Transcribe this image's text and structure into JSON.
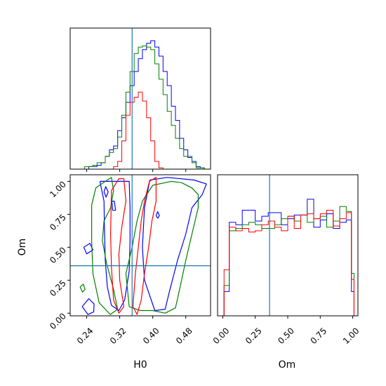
{
  "chart_data": {
    "type": "corner",
    "parameters": [
      "H0",
      "Om"
    ],
    "truth": {
      "H0": 0.35,
      "Om": 0.36
    },
    "colors": {
      "truth": "#1f77b4",
      "series": [
        "#0000ff",
        "#008000",
        "#ff0000"
      ]
    },
    "panels": [
      {
        "id": "hist-H0",
        "type": "histogram",
        "xlabel": "",
        "xlim": [
          0.2,
          0.54
        ],
        "xticks": [
          0.24,
          0.32,
          0.4,
          0.48
        ],
        "show_xticklabels": false,
        "y_scale": [
          0,
          1
        ],
        "bins": [
          0.205,
          0.215,
          0.225,
          0.235,
          0.245,
          0.255,
          0.265,
          0.275,
          0.285,
          0.295,
          0.305,
          0.315,
          0.325,
          0.335,
          0.345,
          0.355,
          0.365,
          0.375,
          0.385,
          0.395,
          0.405,
          0.415,
          0.425,
          0.435,
          0.445,
          0.455,
          0.465,
          0.475,
          0.485,
          0.495,
          0.505,
          0.515,
          0.525
        ],
        "series": [
          {
            "color": "#0000ff",
            "values": [
              0.0,
              0.0,
              0.0,
              0.0,
              0.02,
              0.02,
              0.03,
              0.05,
              0.1,
              0.15,
              0.18,
              0.3,
              0.4,
              0.52,
              0.65,
              0.76,
              0.86,
              0.93,
              0.98,
              1.0,
              0.95,
              0.88,
              0.76,
              0.65,
              0.49,
              0.38,
              0.24,
              0.15,
              0.09,
              0.06,
              0.02,
              0.01,
              0.0
            ]
          },
          {
            "color": "#008000",
            "values": [
              0.0,
              0.0,
              0.0,
              0.02,
              0.02,
              0.03,
              0.05,
              0.05,
              0.1,
              0.13,
              0.16,
              0.25,
              0.42,
              0.6,
              0.76,
              0.9,
              0.95,
              0.96,
              0.95,
              0.93,
              0.82,
              0.7,
              0.58,
              0.45,
              0.34,
              0.24,
              0.16,
              0.1,
              0.1,
              0.05,
              0.01,
              0.01,
              0.0
            ]
          },
          {
            "color": "#ff0000",
            "values": [
              0.0,
              0.0,
              0.0,
              0.0,
              0.0,
              0.0,
              0.0,
              0.0,
              0.0,
              0.0,
              0.02,
              0.06,
              0.22,
              0.42,
              0.52,
              0.56,
              0.6,
              0.53,
              0.4,
              0.22,
              0.06,
              0.01,
              0.0,
              0.0,
              0.0,
              0.0,
              0.0,
              0.0,
              0.0,
              0.0,
              0.0,
              0.0,
              0.0
            ]
          }
        ]
      },
      {
        "id": "contour-H0-Om",
        "type": "contour",
        "xlabel": "H0",
        "ylabel": "Om",
        "xlim": [
          0.2,
          0.54
        ],
        "ylim": [
          -0.02,
          1.05
        ],
        "xticks": [
          "0.24",
          "0.32",
          "0.40",
          "0.48"
        ],
        "yticks": [
          "0.00",
          "0.25",
          "0.50",
          "0.75",
          "1.00"
        ],
        "series": [
          {
            "color": "#0000ff",
            "paths": [
              [
                [
                  0.272,
                  1.0
                ],
                [
                  0.282,
                  0.85
                ],
                [
                  0.283,
                  0.65
                ],
                [
                  0.285,
                  0.4
                ],
                [
                  0.29,
                  0.2
                ],
                [
                  0.3,
                  0.06
                ],
                [
                  0.318,
                  0.02
                ],
                [
                  0.332,
                  0.1
                ],
                [
                  0.343,
                  0.32
                ],
                [
                  0.345,
                  0.55
                ],
                [
                  0.345,
                  0.8
                ],
                [
                  0.343,
                  1.0
                ],
                [
                  0.272,
                  1.0
                ]
              ],
              [
                [
                  0.393,
                  1.01
                ],
                [
                  0.435,
                  1.03
                ],
                [
                  0.5,
                  1.01
                ],
                [
                  0.53,
                  0.98
                ],
                [
                  0.52,
                  0.9
                ],
                [
                  0.495,
                  0.8
                ],
                [
                  0.48,
                  0.6
                ],
                [
                  0.46,
                  0.4
                ],
                [
                  0.44,
                  0.16
                ],
                [
                  0.43,
                  0.03
                ],
                [
                  0.405,
                  0.02
                ],
                [
                  0.38,
                  0.25
                ],
                [
                  0.375,
                  0.5
                ],
                [
                  0.38,
                  0.8
                ],
                [
                  0.393,
                  1.01
                ]
              ],
              [
                [
                  0.229,
                  0.05
                ],
                [
                  0.245,
                  0.11
                ],
                [
                  0.258,
                  0.07
                ],
                [
                  0.257,
                  0.01
                ],
                [
                  0.243,
                  -0.01
                ],
                [
                  0.229,
                  0.05
                ]
              ],
              [
                [
                  0.233,
                  0.5
                ],
                [
                  0.248,
                  0.53
                ],
                [
                  0.255,
                  0.48
                ],
                [
                  0.24,
                  0.45
                ],
                [
                  0.233,
                  0.5
                ]
              ],
              [
                [
                  0.301,
                  0.85
                ],
                [
                  0.307,
                  0.85
                ],
                [
                  0.31,
                  0.78
                ],
                [
                  0.303,
                  0.78
                ],
                [
                  0.301,
                  0.85
                ]
              ],
              [
                [
                  0.282,
                  0.92
                ],
                [
                  0.286,
                  0.96
                ],
                [
                  0.292,
                  0.92
                ],
                [
                  0.287,
                  0.88
                ],
                [
                  0.282,
                  0.92
                ]
              ],
              [
                [
                  0.408,
                  0.74
                ],
                [
                  0.412,
                  0.77
                ],
                [
                  0.416,
                  0.74
                ],
                [
                  0.412,
                  0.72
                ],
                [
                  0.408,
                  0.74
                ]
              ]
            ]
          },
          {
            "color": "#008000",
            "paths": [
              [
                [
                  0.252,
                  0.82
                ],
                [
                  0.262,
                  0.95
                ],
                [
                  0.285,
                  1.0
                ],
                [
                  0.3,
                  1.03
                ],
                [
                  0.305,
                  0.93
                ],
                [
                  0.298,
                  0.8
                ],
                [
                  0.282,
                  0.7
                ],
                [
                  0.278,
                  0.55
                ],
                [
                  0.288,
                  0.38
                ],
                [
                  0.305,
                  0.18
                ],
                [
                  0.315,
                  0.03
                ],
                [
                  0.297,
                  -0.01
                ],
                [
                  0.27,
                  0.08
                ],
                [
                  0.255,
                  0.3
                ],
                [
                  0.252,
                  0.55
                ],
                [
                  0.252,
                  0.82
                ]
              ],
              [
                [
                  0.343,
                  0.05
                ],
                [
                  0.335,
                  0.3
                ],
                [
                  0.35,
                  0.5
                ],
                [
                  0.362,
                  0.7
                ],
                [
                  0.375,
                  0.85
                ],
                [
                  0.4,
                  0.97
                ],
                [
                  0.445,
                  1.0
                ],
                [
                  0.47,
                  0.99
                ],
                [
                  0.495,
                  0.95
                ],
                [
                  0.51,
                  0.9
                ],
                [
                  0.51,
                  0.8
                ],
                [
                  0.495,
                  0.6
                ],
                [
                  0.48,
                  0.4
                ],
                [
                  0.465,
                  0.18
                ],
                [
                  0.455,
                  0.04
                ],
                [
                  0.43,
                  0.0
                ],
                [
                  0.4,
                  0.02
                ],
                [
                  0.37,
                  0.02
                ],
                [
                  0.343,
                  0.05
                ]
              ],
              [
                [
                  0.224,
                  0.2
                ],
                [
                  0.232,
                  0.22
                ],
                [
                  0.236,
                  0.18
                ],
                [
                  0.23,
                  0.16
                ],
                [
                  0.224,
                  0.2
                ]
              ]
            ]
          },
          {
            "color": "#ff0000",
            "paths": [
              [
                [
                  0.3,
                  0.93
                ],
                [
                  0.318,
                  1.02
                ],
                [
                  0.33,
                  1.02
                ],
                [
                  0.335,
                  0.85
                ],
                [
                  0.325,
                  0.65
                ],
                [
                  0.318,
                  0.45
                ],
                [
                  0.32,
                  0.25
                ],
                [
                  0.33,
                  0.05
                ],
                [
                  0.318,
                  0.0
                ],
                [
                  0.305,
                  0.1
                ],
                [
                  0.3,
                  0.35
                ],
                [
                  0.298,
                  0.6
                ],
                [
                  0.3,
                  0.93
                ]
              ],
              [
                [
                  0.352,
                  0.05
                ],
                [
                  0.358,
                  0.3
                ],
                [
                  0.365,
                  0.5
                ],
                [
                  0.372,
                  0.7
                ],
                [
                  0.38,
                  0.85
                ],
                [
                  0.392,
                  1.0
                ],
                [
                  0.408,
                  1.03
                ],
                [
                  0.408,
                  0.85
                ],
                [
                  0.398,
                  0.7
                ],
                [
                  0.39,
                  0.5
                ],
                [
                  0.38,
                  0.3
                ],
                [
                  0.372,
                  0.1
                ],
                [
                  0.362,
                  -0.01
                ],
                [
                  0.352,
                  0.05
                ]
              ]
            ]
          }
        ]
      },
      {
        "id": "hist-Om",
        "type": "histogram",
        "xlabel": "Om",
        "xlim": [
          -0.04,
          1.04
        ],
        "xticks": [
          "0.00",
          "0.25",
          "0.50",
          "0.75",
          "1.00"
        ],
        "show_xticklabels": true,
        "y_scale": [
          0,
          1
        ],
        "bins": [
          -0.01,
          0.01,
          0.05,
          0.1,
          0.15,
          0.2,
          0.25,
          0.3,
          0.35,
          0.4,
          0.45,
          0.5,
          0.55,
          0.6,
          0.65,
          0.7,
          0.75,
          0.8,
          0.85,
          0.9,
          0.95,
          0.99,
          1.01
        ],
        "series": [
          {
            "color": "#0000ff",
            "values": [
              0.0,
              0.2,
              0.77,
              0.75,
              0.87,
              0.87,
              0.78,
              0.82,
              0.85,
              0.85,
              0.75,
              0.8,
              0.83,
              0.83,
              0.96,
              0.73,
              0.79,
              0.84,
              0.72,
              0.77,
              0.79,
              0.2,
              0.0
            ]
          },
          {
            "color": "#008000",
            "values": [
              0.0,
              0.25,
              0.7,
              0.72,
              0.75,
              0.77,
              0.75,
              0.72,
              0.72,
              0.75,
              0.8,
              0.82,
              0.78,
              0.83,
              0.77,
              0.8,
              0.82,
              0.73,
              0.78,
              0.9,
              0.86,
              0.35,
              0.0
            ]
          },
          {
            "color": "#ff0000",
            "values": [
              0.0,
              0.38,
              0.73,
              0.7,
              0.72,
              0.69,
              0.7,
              0.75,
              0.78,
              0.73,
              0.7,
              0.82,
              0.72,
              0.83,
              0.84,
              0.8,
              0.84,
              0.87,
              0.74,
              0.8,
              0.85,
              0.3,
              0.0
            ]
          }
        ]
      }
    ]
  }
}
